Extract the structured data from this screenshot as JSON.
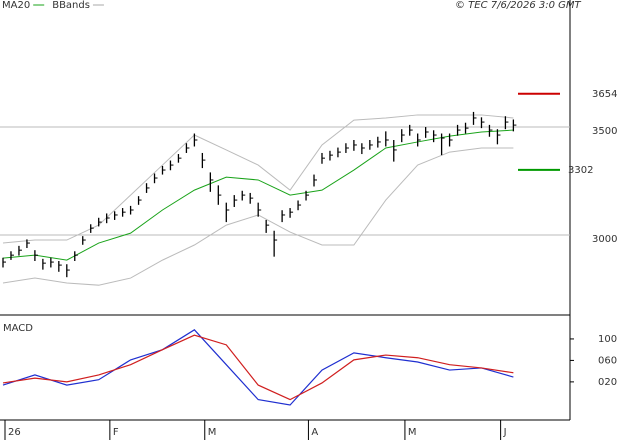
{
  "chart_data": [
    {
      "type": "ohlc-overlay",
      "legend": [
        {
          "name": "MA20",
          "color": "#1aa31a"
        },
        {
          "name": "BBands",
          "color": "#aaaaaa"
        }
      ],
      "copyright": "© TEC 7/6/2026 3:0 GMT",
      "xlim": [
        -0.376,
        71.1
      ],
      "xticks": [
        {
          "value": 0.25,
          "label": "26"
        },
        {
          "value": 13.4,
          "label": "F"
        },
        {
          "value": 25.3,
          "label": "M"
        },
        {
          "value": 38.3,
          "label": "A"
        },
        {
          "value": 50.4,
          "label": "M"
        },
        {
          "value": 62.4,
          "label": "J"
        }
      ],
      "ylim": [
        2630,
        4088
      ],
      "yticks": [
        3000,
        3500
      ],
      "grid": true,
      "bar_color": "#000000",
      "close": [
        2875,
        2907,
        2930,
        2963,
        2907,
        2870,
        2875,
        2861,
        2838,
        2907,
        2977,
        3032,
        3060,
        3079,
        3093,
        3106,
        3116,
        3162,
        3218,
        3264,
        3301,
        3324,
        3356,
        3403,
        3440,
        3347,
        3255,
        3185,
        3116,
        3162,
        3185,
        3171,
        3116,
        3046,
        2977,
        3093,
        3106,
        3139,
        3185,
        3255,
        3356,
        3370,
        3384,
        3403,
        3417,
        3403,
        3417,
        3431,
        3440,
        3394,
        3463,
        3486,
        3440,
        3477,
        3463,
        3449,
        3440,
        3486,
        3495,
        3542,
        3523,
        3486,
        3463,
        3523,
        3509
      ],
      "high": [
        2895,
        2925,
        2950,
        2980,
        2930,
        2890,
        2895,
        2880,
        2865,
        2925,
        2995,
        3050,
        3080,
        3100,
        3110,
        3125,
        3135,
        3180,
        3240,
        3285,
        3320,
        3345,
        3375,
        3425,
        3470,
        3380,
        3290,
        3230,
        3150,
        3185,
        3205,
        3195,
        3150,
        3070,
        3020,
        3115,
        3125,
        3160,
        3205,
        3280,
        3380,
        3390,
        3405,
        3425,
        3440,
        3425,
        3440,
        3455,
        3480,
        3440,
        3490,
        3510,
        3470,
        3500,
        3485,
        3470,
        3470,
        3510,
        3520,
        3570,
        3545,
        3510,
        3490,
        3550,
        3535
      ],
      "low": [
        2850,
        2885,
        2905,
        2940,
        2880,
        2840,
        2850,
        2830,
        2805,
        2880,
        2955,
        3010,
        3040,
        3055,
        3070,
        3085,
        3095,
        3140,
        3195,
        3240,
        3280,
        3300,
        3335,
        3380,
        3410,
        3310,
        3200,
        3140,
        3060,
        3130,
        3160,
        3145,
        3085,
        3010,
        2900,
        3060,
        3080,
        3115,
        3160,
        3225,
        3330,
        3345,
        3360,
        3380,
        3390,
        3375,
        3395,
        3405,
        3410,
        3340,
        3430,
        3460,
        3410,
        3450,
        3430,
        3370,
        3410,
        3460,
        3470,
        3510,
        3495,
        3455,
        3420,
        3490,
        3480
      ],
      "overlays": [
        {
          "color": "#1aa31a",
          "x": [
            0,
            4,
            8,
            12,
            16,
            20,
            24,
            28,
            32,
            36,
            40,
            44,
            48,
            52,
            56,
            60,
            64
          ],
          "values": [
            2893,
            2907,
            2884,
            2963,
            3009,
            3116,
            3208,
            3268,
            3255,
            3185,
            3208,
            3301,
            3403,
            3431,
            3458,
            3477,
            3486
          ]
        },
        {
          "color": "#bbbbbb",
          "x": [
            0,
            4,
            8,
            12,
            16,
            20,
            24,
            28,
            32,
            36,
            40,
            44,
            48,
            52,
            56,
            60,
            64
          ],
          "values": [
            2963,
            2977,
            2977,
            3046,
            3185,
            3324,
            3463,
            3394,
            3324,
            3208,
            3417,
            3532,
            3542,
            3556,
            3556,
            3556,
            3542
          ]
        },
        {
          "color": "#bbbbbb",
          "x": [
            0,
            4,
            8,
            12,
            16,
            20,
            24,
            28,
            32,
            36,
            40,
            44,
            48,
            52,
            56,
            60,
            64
          ],
          "values": [
            2778,
            2801,
            2778,
            2768,
            2801,
            2884,
            2954,
            3046,
            3093,
            3014,
            2954,
            2954,
            3162,
            3324,
            3384,
            3403,
            3403
          ]
        }
      ],
      "levels": [
        {
          "value": 3654,
          "color": "#cc0000"
        },
        {
          "value": 3302,
          "color": "#009900"
        }
      ]
    },
    {
      "type": "macd",
      "title": "MACD",
      "ylim": [
        -51,
        139
      ],
      "yticks": [
        {
          "value": 100,
          "label": "100"
        },
        {
          "value": 60,
          "label": "060"
        },
        {
          "value": 20,
          "label": "020"
        }
      ],
      "series": [
        {
          "color": "#1f2fd0",
          "x": [
            0,
            4,
            8,
            12,
            16,
            20,
            24,
            28,
            32,
            36,
            40,
            44,
            48,
            52,
            56,
            60,
            64
          ],
          "values": [
            14,
            33,
            14,
            24,
            61,
            80,
            117,
            52,
            -13,
            -23,
            42,
            74,
            65,
            57,
            42,
            46,
            29
          ]
        },
        {
          "color": "#d01f1f",
          "x": [
            0,
            4,
            8,
            12,
            16,
            20,
            24,
            28,
            32,
            36,
            40,
            44,
            48,
            52,
            56,
            60,
            64
          ],
          "values": [
            18,
            27,
            20,
            33,
            52,
            80,
            107,
            89,
            14,
            -13,
            18,
            61,
            70,
            65,
            52,
            46,
            37
          ]
        }
      ]
    }
  ]
}
